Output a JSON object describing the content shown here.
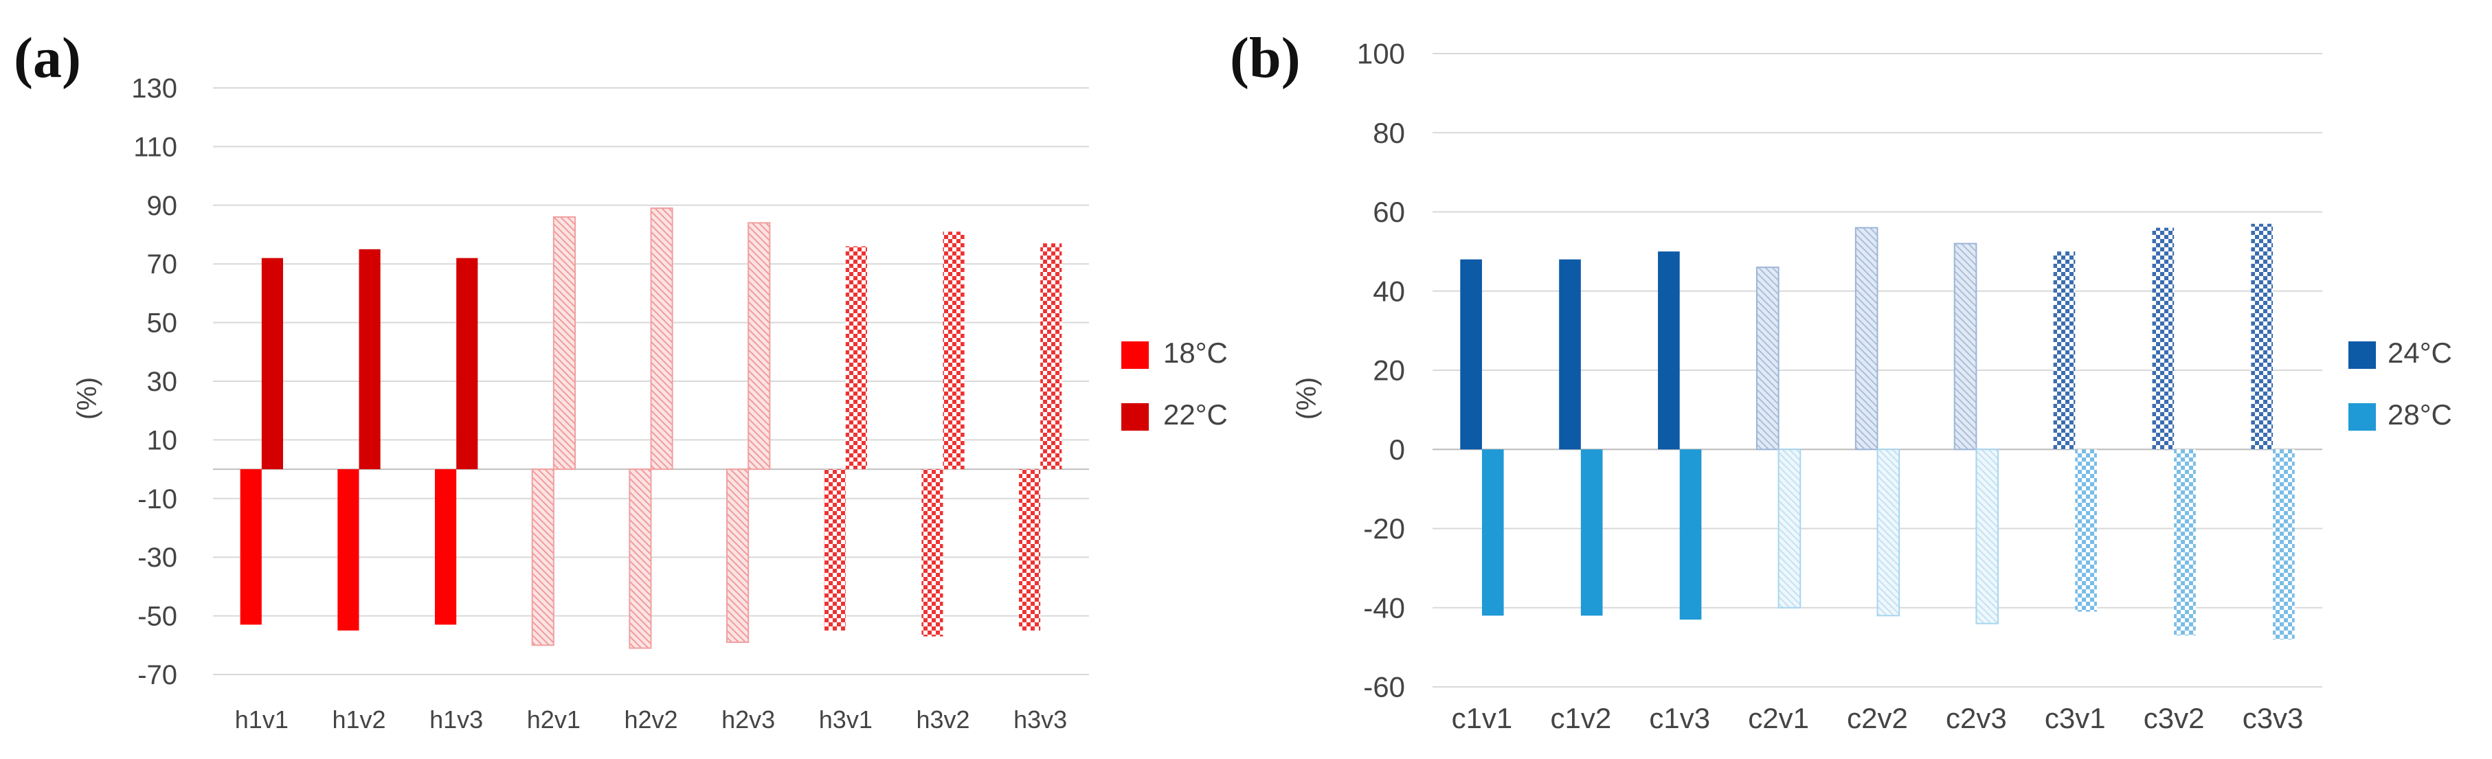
{
  "chart_data": [
    {
      "type": "bar",
      "panel_label": "(a)",
      "ylabel": "(%)",
      "xlabel": "",
      "ylim": [
        -70,
        130
      ],
      "yticks": [
        "-70",
        "-50",
        "-30",
        "-10",
        "10",
        "30",
        "50",
        "70",
        "90",
        "110",
        "130"
      ],
      "grid": true,
      "legend_position": "right",
      "categories": [
        "h1v1",
        "h1v2",
        "h1v3",
        "h2v1",
        "h2v2",
        "h2v3",
        "h3v1",
        "h3v2",
        "h3v3"
      ],
      "patterns": [
        "solid",
        "solid",
        "solid",
        "hatched",
        "hatched",
        "hatched",
        "checkered",
        "checkered",
        "checkered"
      ],
      "series": [
        {
          "name": "18°C",
          "color": "#ff0000",
          "values": [
            -53,
            -55,
            -53,
            -60,
            -61,
            -59,
            -55,
            -57,
            -55
          ]
        },
        {
          "name": "22°C",
          "color": "#d40000",
          "values": [
            72,
            75,
            72,
            86,
            89,
            84,
            76,
            81,
            77
          ]
        }
      ]
    },
    {
      "type": "bar",
      "panel_label": "(b)",
      "ylabel": "(%)",
      "xlabel": "",
      "ylim": [
        -60,
        100
      ],
      "yticks": [
        "-60",
        "-40",
        "-20",
        "0",
        "20",
        "40",
        "60",
        "80",
        "100"
      ],
      "grid": true,
      "legend_position": "right",
      "categories": [
        "c1v1",
        "c1v2",
        "c1v3",
        "c2v1",
        "c2v2",
        "c2v3",
        "c3v1",
        "c3v2",
        "c3v3"
      ],
      "patterns": [
        "solid",
        "solid",
        "solid",
        "hatched",
        "hatched",
        "hatched",
        "checkered",
        "checkered",
        "checkered"
      ],
      "series": [
        {
          "name": "24°C",
          "color": "#0d5aa7",
          "values": [
            48,
            48,
            50,
            46,
            56,
            52,
            50,
            56,
            57
          ]
        },
        {
          "name": "28°C",
          "color": "#1f9ad6",
          "values": [
            -42,
            -42,
            -43,
            -40,
            -42,
            -44,
            -41,
            -47,
            -48
          ]
        }
      ]
    }
  ]
}
